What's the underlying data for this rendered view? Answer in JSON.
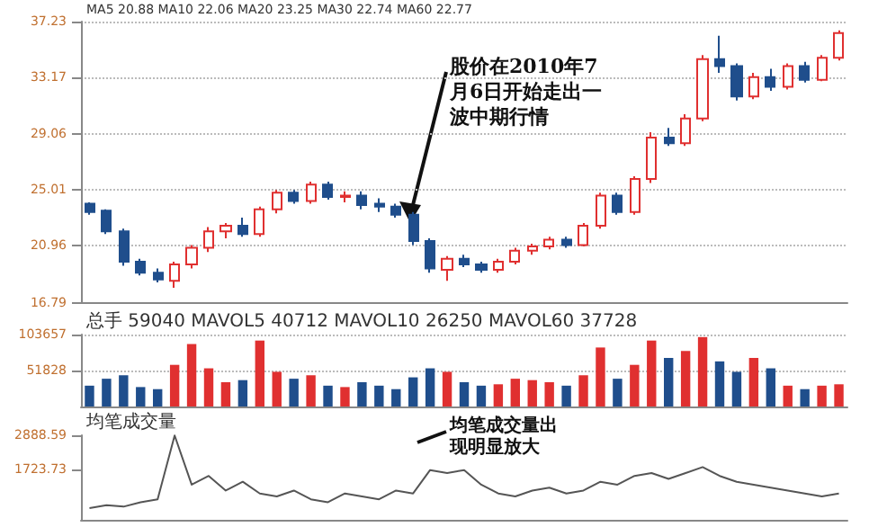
{
  "chart_data": [
    {
      "type": "candlestick",
      "categories": [
        null,
        null,
        null,
        null,
        null,
        null,
        null,
        null,
        null,
        null,
        null,
        null,
        null,
        null,
        null,
        null,
        null,
        null,
        null,
        null,
        null,
        null,
        null,
        null,
        null,
        null,
        null,
        null,
        null,
        null,
        null,
        null,
        null,
        null,
        null,
        null,
        null,
        null,
        null,
        null,
        null,
        null,
        null,
        null,
        null
      ],
      "ohlc": [
        [
          24.0,
          24.1,
          23.2,
          23.4
        ],
        [
          23.5,
          23.6,
          21.8,
          22.0
        ],
        [
          22.0,
          22.2,
          19.5,
          19.8
        ],
        [
          19.8,
          20.0,
          18.8,
          19.0
        ],
        [
          19.0,
          19.3,
          18.3,
          18.5
        ],
        [
          18.4,
          19.8,
          17.9,
          19.6
        ],
        [
          19.6,
          21.0,
          19.3,
          20.8
        ],
        [
          20.8,
          22.3,
          20.5,
          22.0
        ],
        [
          22.0,
          22.6,
          21.5,
          22.4
        ],
        [
          22.4,
          23.0,
          21.6,
          21.8
        ],
        [
          21.8,
          23.8,
          21.6,
          23.6
        ],
        [
          23.6,
          25.0,
          23.3,
          24.8
        ],
        [
          24.8,
          25.0,
          24.0,
          24.2
        ],
        [
          24.2,
          25.6,
          24.0,
          25.4
        ],
        [
          25.4,
          25.6,
          24.3,
          24.5
        ],
        [
          24.5,
          24.9,
          24.1,
          24.6
        ],
        [
          24.6,
          24.9,
          23.6,
          23.9
        ],
        [
          24.0,
          24.4,
          23.4,
          23.8
        ],
        [
          23.8,
          24.0,
          23.0,
          23.2
        ],
        [
          23.2,
          23.4,
          21.0,
          21.3
        ],
        [
          21.3,
          21.5,
          19.0,
          19.3
        ],
        [
          19.2,
          20.2,
          18.4,
          20.0
        ],
        [
          20.0,
          20.3,
          19.4,
          19.6
        ],
        [
          19.6,
          19.8,
          19.0,
          19.2
        ],
        [
          19.2,
          20.0,
          19.0,
          19.8
        ],
        [
          19.8,
          20.8,
          19.6,
          20.6
        ],
        [
          20.6,
          21.1,
          20.3,
          20.9
        ],
        [
          20.9,
          21.6,
          20.7,
          21.4
        ],
        [
          21.4,
          21.6,
          20.8,
          21.0
        ],
        [
          21.0,
          22.6,
          20.9,
          22.4
        ],
        [
          22.4,
          24.8,
          22.2,
          24.6
        ],
        [
          24.6,
          24.8,
          23.2,
          23.4
        ],
        [
          23.4,
          26.0,
          23.2,
          25.8
        ],
        [
          25.8,
          29.2,
          25.5,
          28.8
        ],
        [
          28.8,
          29.5,
          28.2,
          28.4
        ],
        [
          28.4,
          30.5,
          28.2,
          30.2
        ],
        [
          30.2,
          34.8,
          30.0,
          34.5
        ],
        [
          34.5,
          36.2,
          33.5,
          34.0
        ],
        [
          34.0,
          34.2,
          31.5,
          31.8
        ],
        [
          31.8,
          33.5,
          31.6,
          33.2
        ],
        [
          33.2,
          33.8,
          32.2,
          32.5
        ],
        [
          32.5,
          34.2,
          32.3,
          34.0
        ],
        [
          34.0,
          34.3,
          32.8,
          33.0
        ],
        [
          33.0,
          34.8,
          32.9,
          34.6
        ],
        [
          34.6,
          36.6,
          34.4,
          36.4
        ]
      ],
      "colors": [
        "#1f4e8c",
        "#1f4e8c",
        "#1f4e8c",
        "#1f4e8c",
        "#1f4e8c",
        "#e03030",
        "#e03030",
        "#e03030",
        "#e03030",
        "#1f4e8c",
        "#e03030",
        "#e03030",
        "#1f4e8c",
        "#e03030",
        "#1f4e8c",
        "#e03030",
        "#1f4e8c",
        "#1f4e8c",
        "#1f4e8c",
        "#1f4e8c",
        "#1f4e8c",
        "#e03030",
        "#1f4e8c",
        "#1f4e8c",
        "#e03030",
        "#e03030",
        "#e03030",
        "#e03030",
        "#1f4e8c",
        "#e03030",
        "#e03030",
        "#1f4e8c",
        "#e03030",
        "#e03030",
        "#1f4e8c",
        "#e03030",
        "#e03030",
        "#1f4e8c",
        "#1f4e8c",
        "#e03030",
        "#1f4e8c",
        "#e03030",
        "#1f4e8c",
        "#e03030",
        "#e03030"
      ],
      "ylim": [
        16.79,
        37.23
      ],
      "yticks": [
        16.79,
        20.96,
        25.01,
        29.06,
        33.17,
        37.23
      ],
      "grid": "y",
      "tick_labels": "y",
      "annotations": [
        "MA5 20.88 MA10 22.06 MA20 23.25 MA30 22.74 MA60 22.77",
        "股价在2010年7月6日开始走出一波中期行情"
      ]
    },
    {
      "type": "bar",
      "categories": [
        null,
        null,
        null,
        null,
        null,
        null,
        null,
        null,
        null,
        null,
        null,
        null,
        null,
        null,
        null,
        null,
        null,
        null,
        null,
        null,
        null,
        null,
        null,
        null,
        null,
        null,
        null,
        null,
        null,
        null,
        null,
        null,
        null,
        null,
        null,
        null,
        null,
        null,
        null,
        null,
        null,
        null,
        null,
        null,
        null
      ],
      "values": [
        30000,
        40000,
        45000,
        28000,
        25000,
        60000,
        90000,
        55000,
        35000,
        38000,
        95000,
        50000,
        40000,
        45000,
        30000,
        28000,
        35000,
        30000,
        25000,
        42000,
        55000,
        50000,
        35000,
        30000,
        32000,
        40000,
        38000,
        35000,
        30000,
        45000,
        85000,
        40000,
        60000,
        95000,
        70000,
        80000,
        100000,
        65000,
        50000,
        70000,
        55000,
        30000,
        25000,
        30000,
        32000
      ],
      "colors": [
        "#1f4e8c",
        "#1f4e8c",
        "#1f4e8c",
        "#1f4e8c",
        "#1f4e8c",
        "#e03030",
        "#e03030",
        "#e03030",
        "#e03030",
        "#1f4e8c",
        "#e03030",
        "#e03030",
        "#1f4e8c",
        "#e03030",
        "#1f4e8c",
        "#e03030",
        "#1f4e8c",
        "#1f4e8c",
        "#1f4e8c",
        "#1f4e8c",
        "#1f4e8c",
        "#e03030",
        "#1f4e8c",
        "#1f4e8c",
        "#e03030",
        "#e03030",
        "#e03030",
        "#e03030",
        "#1f4e8c",
        "#e03030",
        "#e03030",
        "#1f4e8c",
        "#e03030",
        "#e03030",
        "#1f4e8c",
        "#e03030",
        "#e03030",
        "#1f4e8c",
        "#1f4e8c",
        "#e03030",
        "#1f4e8c",
        "#e03030",
        "#1f4e8c",
        "#e03030",
        "#e03030"
      ],
      "ylim": [
        0,
        103657
      ],
      "yticks": [
        51828,
        103657
      ],
      "grid": "y",
      "tick_labels": "y",
      "annotations": [
        "总手 59040 MAVOL5 40712 MAVOL10 26250 MAVOL60 37728"
      ]
    },
    {
      "type": "line",
      "categories": [
        null,
        null,
        null,
        null,
        null,
        null,
        null,
        null,
        null,
        null,
        null,
        null,
        null,
        null,
        null,
        null,
        null,
        null,
        null,
        null,
        null,
        null,
        null,
        null,
        null,
        null,
        null,
        null,
        null,
        null,
        null,
        null,
        null,
        null,
        null,
        null,
        null,
        null,
        null,
        null,
        null,
        null,
        null,
        null,
        null
      ],
      "values": [
        400,
        500,
        450,
        600,
        700,
        2880,
        1200,
        1500,
        1000,
        1300,
        900,
        800,
        1000,
        700,
        600,
        900,
        800,
        700,
        1000,
        900,
        1700,
        1600,
        1700,
        1200,
        900,
        800,
        1000,
        1100,
        900,
        1000,
        1300,
        1200,
        1500,
        1600,
        1400,
        1600,
        1800,
        1500,
        1300,
        1200,
        1100,
        1000,
        900,
        800,
        900
      ],
      "color": "#555555",
      "ylim": [
        0,
        2888.59
      ],
      "yticks": [
        1723.73,
        2888.59
      ],
      "tick_labels": "y",
      "annotations": [
        "均笔成交量",
        "均笔成交量出现明显放大"
      ]
    }
  ]
}
